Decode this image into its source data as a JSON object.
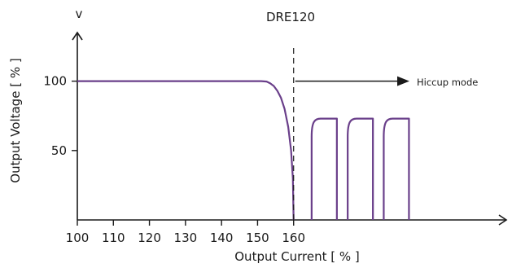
{
  "chart_data": {
    "type": "line",
    "title": "DRE120",
    "xlabel": "Output Current  [ % ]",
    "ylabel": "Output Voltage  [ % ]",
    "y_unit_label": "v",
    "x_ticks": [
      100,
      110,
      120,
      130,
      140,
      150,
      160
    ],
    "y_ticks": [
      50,
      100
    ],
    "xlim": [
      100,
      219
    ],
    "ylim": [
      0,
      135
    ],
    "series": [
      {
        "values": [
          [
            100,
            100
          ],
          [
            151,
            100
          ],
          [
            152.5,
            99.7
          ],
          [
            153.5,
            98.5
          ],
          [
            154.5,
            96.5
          ],
          [
            155.5,
            93
          ],
          [
            156.5,
            88
          ],
          [
            157.5,
            80
          ],
          [
            158.5,
            67
          ],
          [
            159.3,
            50
          ],
          [
            159.8,
            30
          ],
          [
            160,
            0
          ]
        ]
      }
    ],
    "hiccup_pulses": [
      {
        "x_start": 165,
        "x_end": 172,
        "peak": 73
      },
      {
        "x_start": 175,
        "x_end": 182,
        "peak": 73
      },
      {
        "x_start": 185,
        "x_end": 192,
        "peak": 73
      }
    ],
    "annotations": [
      {
        "text": "Hiccup mode",
        "x": 160,
        "y": 100
      }
    ],
    "limit_line_x": 160,
    "line_color": "#6a3f8a",
    "axis_color": "#1a1a1a",
    "grid": false,
    "legend": "none"
  }
}
